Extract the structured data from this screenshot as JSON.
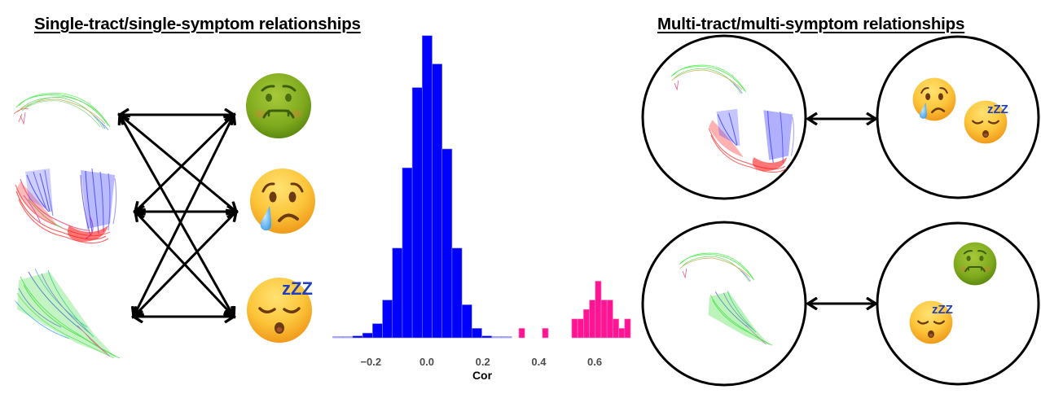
{
  "titles": {
    "left": "Single-tract/single-symptom relationships",
    "right": "Multi-tract/multi-symptom relationships"
  },
  "left_panel": {
    "tracts": [
      "tract-arcuate-green",
      "tract-u-shaped-blue-red",
      "tract-fan-green"
    ],
    "symptoms": [
      "nauseated-face-icon",
      "crying-face-icon",
      "sleepy-face-icon"
    ],
    "connections": "all-to-all bidirectional"
  },
  "right_panel": {
    "rows": [
      {
        "tracts": [
          "tract-arcuate-green",
          "tract-u-shaped-blue-red"
        ],
        "symptoms": [
          "crying-face-icon",
          "sleepy-face-icon"
        ]
      },
      {
        "tracts": [
          "tract-arcuate-green",
          "tract-fan-green"
        ],
        "symptoms": [
          "nauseated-face-icon",
          "sleepy-face-icon"
        ]
      }
    ]
  },
  "emoji": {
    "zzz": "zZZ"
  },
  "colors": {
    "blue_series": "#0000ff",
    "pink_series": "#ff1493",
    "tick_text": "#4d4d4d"
  },
  "chart_data": {
    "type": "bar",
    "title": "",
    "xlabel": "Cor",
    "ylabel": "",
    "xlim": [
      -0.33,
      0.73
    ],
    "xticks": [
      -0.2,
      0.0,
      0.2,
      0.4,
      0.6
    ],
    "xtick_labels": [
      "−0.2",
      "0.0",
      "0.2",
      "0.4",
      "0.6"
    ],
    "grid": false,
    "series": [
      {
        "name": "single-tract/single-symptom",
        "color": "#0000ff",
        "bin_start": -0.336,
        "bin_width": 0.0355,
        "values": [
          0.1,
          0.1,
          0.2,
          0.5,
          1.5,
          4,
          9.5,
          18,
          26.5,
          32,
          29,
          20,
          9.5,
          3.5,
          1,
          0.2,
          0.1,
          0.1
        ]
      },
      {
        "name": "multi-tract/multi-symptom",
        "color": "#ff1493",
        "bin_start": 0.329,
        "bin_width": 0.021,
        "values": [
          1,
          0,
          0,
          0,
          1,
          0,
          0,
          0,
          0,
          2,
          2,
          3,
          4,
          6,
          4,
          4,
          2,
          1,
          2
        ]
      }
    ]
  }
}
